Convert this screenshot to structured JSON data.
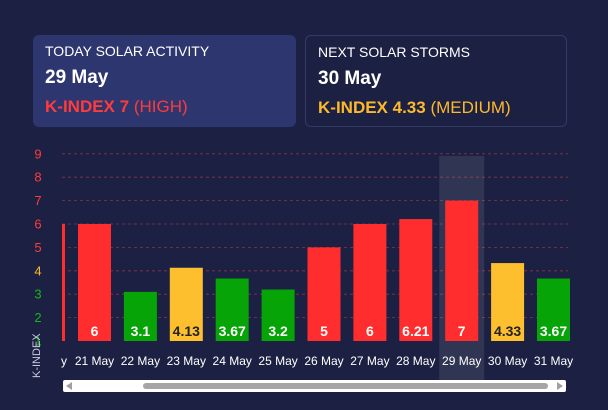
{
  "today": {
    "label": "TODAY SOLAR ACTIVITY",
    "date": "29 May",
    "kindex": "K-INDEX 7",
    "level": "(HIGH)"
  },
  "next": {
    "label": "NEXT SOLAR STORMS",
    "date": "30 May",
    "kindex": "K-INDEX 4.33",
    "level": "(MEDIUM)"
  },
  "colors": {
    "high": "#ff2d2d",
    "medium": "#fdbf2d",
    "low": "#06a406",
    "tick_high": "#ff3b3b",
    "tick_medium": "#fdb92c",
    "tick_low": "#18b418"
  },
  "chart_data": {
    "type": "bar",
    "ylabel": "K-INDEX",
    "ylim": [
      1,
      9
    ],
    "yticks": [
      1,
      2,
      3,
      4,
      5,
      6,
      7,
      8,
      9
    ],
    "partial_first_category": "y",
    "categories": [
      "21 May",
      "22 May",
      "23 May",
      "24 May",
      "25 May",
      "26 May",
      "27 May",
      "28 May",
      "29 May",
      "30 May",
      "31 May"
    ],
    "values": [
      6,
      3.1,
      4.13,
      3.67,
      3.2,
      5,
      6,
      6.21,
      7,
      4.33,
      3.67
    ],
    "value_labels": [
      "6",
      "3.1",
      "4.13",
      "3.67",
      "3.2",
      "5",
      "6",
      "6.21",
      "7",
      "4.33",
      "3.67"
    ],
    "highlighted": "29 May",
    "grid": true,
    "scrollbar": true
  }
}
